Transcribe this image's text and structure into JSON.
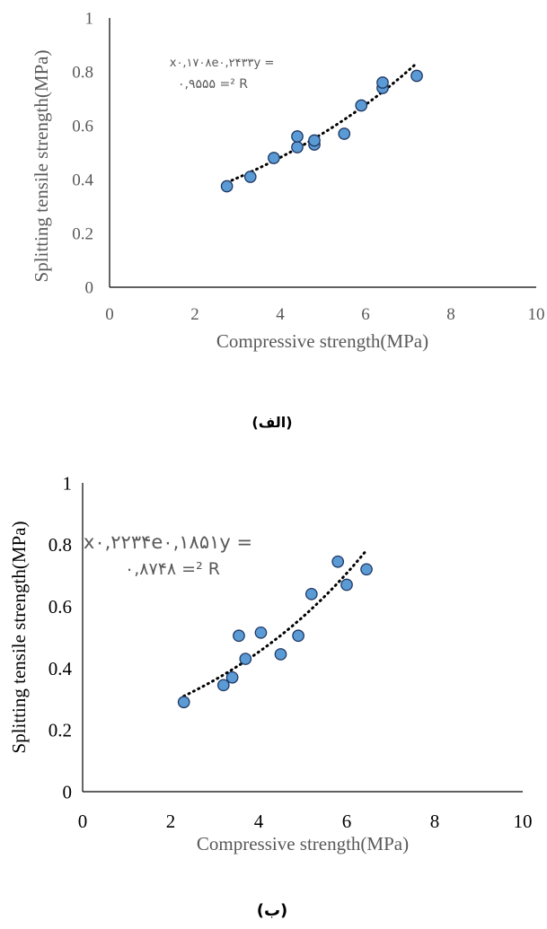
{
  "chart_data": [
    {
      "type": "scatter",
      "panel_label": "(الف)",
      "xlabel": "Compressive strength(MPa)",
      "ylabel": "Splitting tensile strength(MPa)",
      "xlim": [
        0,
        10
      ],
      "ylim": [
        0,
        1
      ],
      "x_ticks": [
        0,
        2,
        4,
        6,
        8,
        10
      ],
      "y_ticks": [
        0,
        0.2,
        0.4,
        0.6,
        0.8,
        1
      ],
      "x_tick_labels": [
        "0",
        "2",
        "4",
        "6",
        "8",
        "10"
      ],
      "y_tick_labels": [
        "0",
        "0.2",
        "0.4",
        "0.6",
        "0.8",
        "1"
      ],
      "equation_line1": "x۰,۱۷۰۸e۰,۲۴۳۳y =",
      "equation_line2": "۰,۹۵۵۵ =² R",
      "trendline": {
        "type": "exponential",
        "a": 0.2433,
        "b": 0.1708,
        "x_range": [
          2.75,
          7.2
        ]
      },
      "points": [
        {
          "x": 2.75,
          "y": 0.375
        },
        {
          "x": 3.3,
          "y": 0.41
        },
        {
          "x": 3.85,
          "y": 0.48
        },
        {
          "x": 4.4,
          "y": 0.52
        },
        {
          "x": 4.4,
          "y": 0.56
        },
        {
          "x": 4.8,
          "y": 0.53
        },
        {
          "x": 4.8,
          "y": 0.545
        },
        {
          "x": 5.5,
          "y": 0.57
        },
        {
          "x": 5.9,
          "y": 0.675
        },
        {
          "x": 6.4,
          "y": 0.74
        },
        {
          "x": 6.4,
          "y": 0.76
        },
        {
          "x": 7.2,
          "y": 0.785
        }
      ],
      "grid": false,
      "legend": "none"
    },
    {
      "type": "scatter",
      "panel_label": "(ب)",
      "xlabel": "Compressive strength(MPa)",
      "ylabel": "Splitting tensile strength(MPa)",
      "xlim": [
        0,
        10
      ],
      "ylim": [
        0,
        1
      ],
      "x_ticks": [
        0,
        2,
        4,
        6,
        8,
        10
      ],
      "y_ticks": [
        0,
        0.2,
        0.4,
        0.6,
        0.8,
        1
      ],
      "x_tick_labels": [
        "0",
        "2",
        "4",
        "6",
        "8",
        "10"
      ],
      "y_tick_labels": [
        "0",
        "0.2",
        "0.4",
        "0.6",
        "0.8",
        "1"
      ],
      "equation_line1": "x۰,۲۲۳۴e۰,۱۸۵۱y =",
      "equation_line2": "۰,۸۷۴۸ =² R",
      "trendline": {
        "type": "exponential",
        "a": 0.1851,
        "b": 0.2234,
        "x_range": [
          2.3,
          6.45
        ]
      },
      "points": [
        {
          "x": 2.3,
          "y": 0.29
        },
        {
          "x": 3.2,
          "y": 0.345
        },
        {
          "x": 3.4,
          "y": 0.37
        },
        {
          "x": 3.55,
          "y": 0.505
        },
        {
          "x": 3.7,
          "y": 0.43
        },
        {
          "x": 4.05,
          "y": 0.515
        },
        {
          "x": 4.5,
          "y": 0.445
        },
        {
          "x": 4.9,
          "y": 0.505
        },
        {
          "x": 5.2,
          "y": 0.64
        },
        {
          "x": 5.8,
          "y": 0.745
        },
        {
          "x": 6.0,
          "y": 0.67
        },
        {
          "x": 6.45,
          "y": 0.72
        }
      ],
      "grid": false,
      "legend": "none"
    }
  ]
}
